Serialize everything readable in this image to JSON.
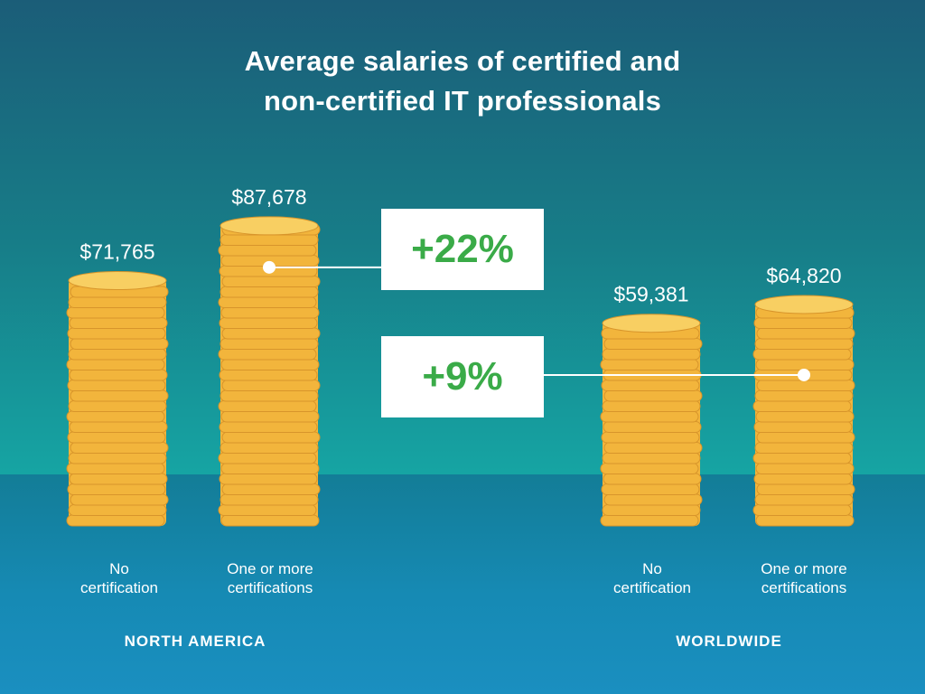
{
  "chart_data": {
    "type": "bar",
    "title_lines": [
      "Average salaries of certified and",
      "non-certified IT professionals"
    ],
    "groups": [
      {
        "name": "NORTH AMERICA",
        "bars": [
          {
            "category": [
              "No",
              "certification"
            ],
            "value": 71765,
            "label": "$71,765"
          },
          {
            "category": [
              "One or more",
              "certifications"
            ],
            "value": 87678,
            "label": "$87,678"
          }
        ],
        "difference": "+22%"
      },
      {
        "name": "WORLDWIDE",
        "bars": [
          {
            "category": [
              "No",
              "certification"
            ],
            "value": 59381,
            "label": "$59,381"
          },
          {
            "category": [
              "One or more",
              "certifications"
            ],
            "value": 64820,
            "label": "$64,820"
          }
        ],
        "difference": "+9%"
      }
    ],
    "colors": {
      "coin": "#f2b53c",
      "coin_top": "#f8cf62",
      "coin_edge": "#d8952b",
      "difference_text": "#3aab48",
      "difference_box": "#ffffff"
    }
  }
}
